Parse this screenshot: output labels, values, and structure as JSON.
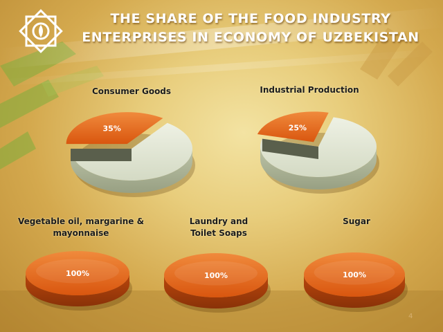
{
  "title": "THE SHARE OF THE FOOD INDUSTRY ENTERPRISES IN ECONOMY OF UZBEKISTAN",
  "page_number": "4",
  "colors": {
    "highlight_slice": "#e0661a",
    "rest_slice": "#e3e7d4",
    "title_text": "#ffffff",
    "background": "#e8cd7c"
  },
  "chart_data": [
    {
      "type": "pie",
      "title": "Consumer Goods",
      "values": [
        35,
        65
      ],
      "value_labels": [
        "35%",
        ""
      ]
    },
    {
      "type": "pie",
      "title": "Industrial Production",
      "values": [
        25,
        75
      ],
      "value_labels": [
        "25%",
        ""
      ]
    },
    {
      "type": "pie",
      "title": "Vegetable oil, margarine & mayonnaise",
      "values": [
        100
      ],
      "value_labels": [
        "100%"
      ]
    },
    {
      "type": "pie",
      "title": "Laundry and Toilet Soaps",
      "values": [
        100
      ],
      "value_labels": [
        "100%"
      ]
    },
    {
      "type": "pie",
      "title": "Sugar",
      "values": [
        100
      ],
      "value_labels": [
        "100%"
      ]
    }
  ]
}
